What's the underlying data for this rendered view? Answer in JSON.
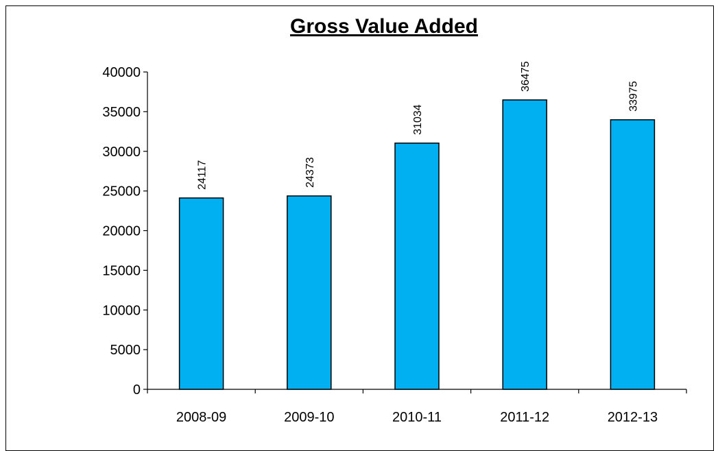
{
  "chart_data": {
    "type": "bar",
    "title": "Gross Value Added",
    "categories": [
      "2008-09",
      "2009-10",
      "2010-11",
      "2011-12",
      "2012-13"
    ],
    "values": [
      24117,
      24373,
      31034,
      36475,
      33975
    ],
    "xlabel": "",
    "ylabel": "",
    "ylim": [
      0,
      40000
    ],
    "yticks": [
      0,
      5000,
      10000,
      15000,
      20000,
      25000,
      30000,
      35000,
      40000
    ],
    "grid": false,
    "legend": "none",
    "bar_color": "#00B0F0",
    "data_labels": true
  }
}
